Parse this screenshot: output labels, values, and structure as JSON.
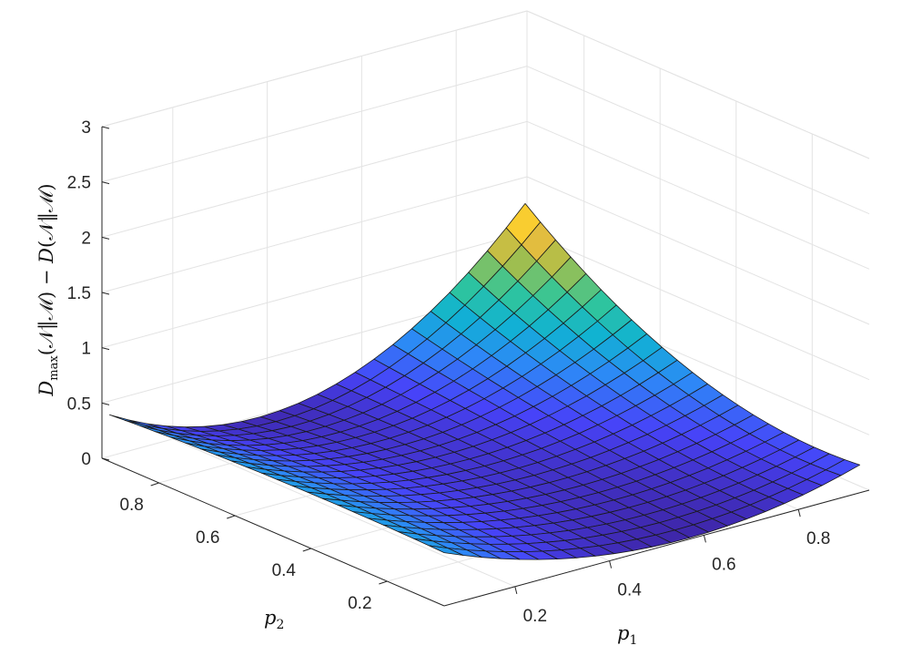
{
  "chart_data": {
    "type": "surface",
    "zlabel": "D_max(N‖M) − D(N‖M)",
    "zlabel_parts": {
      "d1": "D",
      "sub": "max",
      "mid": "(𝒩‖ℳ) − ",
      "d2": "D",
      "end": "(𝒩‖ℳ)"
    },
    "xlabel_parts": {
      "base": "p",
      "sub": "1"
    },
    "ylabel_parts": {
      "base": "p",
      "sub": "2"
    },
    "xlim": [
      0.05,
      0.95
    ],
    "ylim": [
      0.05,
      0.95
    ],
    "zlim": [
      0,
      3
    ],
    "x_ticks": [
      0.2,
      0.4,
      0.6,
      0.8
    ],
    "x_tick_labels": [
      "0.2",
      "0.4",
      "0.6",
      "0.8"
    ],
    "y_ticks": [
      0.2,
      0.4,
      0.6,
      0.8
    ],
    "y_tick_labels": [
      "0.2",
      "0.4",
      "0.6",
      "0.8"
    ],
    "z_ticks": [
      0,
      0.5,
      1,
      1.5,
      2,
      2.5,
      3
    ],
    "z_tick_labels": [
      "0",
      "0.5",
      "1",
      "1.5",
      "2",
      "2.5",
      "3"
    ],
    "grid": true,
    "colormap": [
      "#3e26a8",
      "#4743f8",
      "#2e87f7",
      "#10b2d3",
      "#31c699",
      "#a5be4b",
      "#f9bd3a",
      "#f9fb15"
    ],
    "x": [
      0.05,
      0.09,
      0.13,
      0.17,
      0.21,
      0.25,
      0.29,
      0.33,
      0.37,
      0.41,
      0.45,
      0.49,
      0.53,
      0.57,
      0.61,
      0.65,
      0.69,
      0.73,
      0.77,
      0.81,
      0.85,
      0.89,
      0.93
    ],
    "y": [
      0.05,
      0.09,
      0.13,
      0.17,
      0.21,
      0.25,
      0.29,
      0.33,
      0.37,
      0.41,
      0.45,
      0.49,
      0.53,
      0.57,
      0.61,
      0.65,
      0.69,
      0.73,
      0.77,
      0.81,
      0.85,
      0.89,
      0.93
    ],
    "z_model": "approximate: z(p1,p2) = 4.5·p2²·(p1−0.35)² + 1.9·(1−p2)²·(0.55−p1)² + 1.2·p2·(1−p1)²·(1−p2)"
  }
}
